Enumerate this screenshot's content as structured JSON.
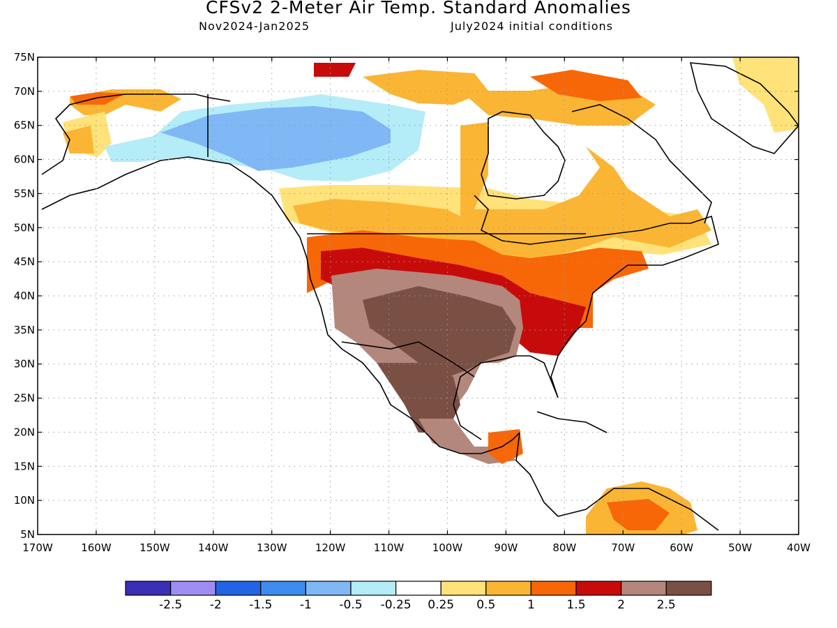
{
  "title": "CFSv2 2-Meter Air Temp. Standard Anomalies",
  "period": "Nov2024-Jan2025",
  "init": "July2024 initial conditions",
  "lat_labels": [
    "75N",
    "70N",
    "65N",
    "60N",
    "55N",
    "50N",
    "45N",
    "40N",
    "35N",
    "30N",
    "25N",
    "20N",
    "15N",
    "10N",
    "5N"
  ],
  "lon_labels": [
    "170W",
    "160W",
    "150W",
    "140W",
    "130W",
    "120W",
    "110W",
    "100W",
    "90W",
    "80W",
    "70W",
    "60W",
    "50W",
    "40W"
  ],
  "colorbar": {
    "colors": [
      "#3a2fb5",
      "#a08cf5",
      "#2264e4",
      "#3f8cf0",
      "#7fb8f5",
      "#b4ecf8",
      "#ffffff",
      "#ffe27a",
      "#fbb534",
      "#f76708",
      "#c70b0b",
      "#b3877c",
      "#7a4f44"
    ],
    "labels": [
      "-2.5",
      "-2",
      "-1.5",
      "-1",
      "-0.5",
      "-0.25",
      "0.25",
      "0.5",
      "1",
      "1.5",
      "2",
      "2.5"
    ]
  },
  "map_regions": [
    {
      "name": "alaska-north-warm",
      "color": "#fbb534"
    },
    {
      "name": "canada-cool",
      "color": "#7fb8f5"
    },
    {
      "name": "us-south-strong-warm",
      "color": "#7a4f44"
    },
    {
      "name": "us-east-warm",
      "color": "#c70b0b"
    },
    {
      "name": "canada-east-warm",
      "color": "#ffe27a"
    }
  ]
}
